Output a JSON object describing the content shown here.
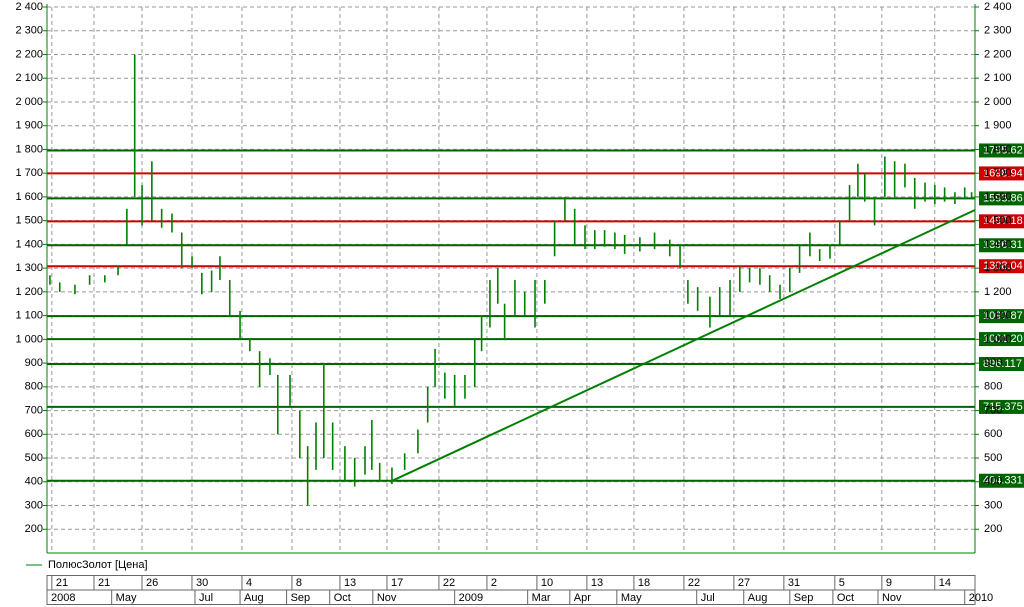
{
  "chart_data": {
    "type": "ohlc",
    "xlim": [
      -0.16,
      18.78
    ],
    "ylim": [
      100,
      2400
    ],
    "grid": true,
    "yticks": [
      {
        "value": 200,
        "label": "200"
      },
      {
        "value": 300,
        "label": "300"
      },
      {
        "value": 400,
        "label": "400"
      },
      {
        "value": 500,
        "label": "500"
      },
      {
        "value": 600,
        "label": "600"
      },
      {
        "value": 700,
        "label": "700"
      },
      {
        "value": 800,
        "label": "800"
      },
      {
        "value": 900,
        "label": "900"
      },
      {
        "value": 1000,
        "label": "1 000"
      },
      {
        "value": 1100,
        "label": "1 100"
      },
      {
        "value": 1200,
        "label": "1 200"
      },
      {
        "value": 1300,
        "label": "1 300"
      },
      {
        "value": 1400,
        "label": "1 400"
      },
      {
        "value": 1500,
        "label": "1 500"
      },
      {
        "value": 1600,
        "label": "1 600"
      },
      {
        "value": 1700,
        "label": "1 700"
      },
      {
        "value": 1800,
        "label": "1 800"
      },
      {
        "value": 1900,
        "label": "1 900"
      },
      {
        "value": 2000,
        "label": "2 000"
      },
      {
        "value": 2100,
        "label": "2 100"
      },
      {
        "value": 2200,
        "label": "2 200"
      },
      {
        "value": 2300,
        "label": "2 300"
      },
      {
        "value": 2400,
        "label": "2 400"
      }
    ],
    "xticks": [
      {
        "value": 0,
        "label": "21"
      },
      {
        "value": 0.86,
        "label": "21"
      },
      {
        "value": 1.84,
        "label": "26"
      },
      {
        "value": 2.86,
        "label": "30"
      },
      {
        "value": 3.88,
        "label": "4"
      },
      {
        "value": 4.9,
        "label": "8"
      },
      {
        "value": 5.88,
        "label": "13"
      },
      {
        "value": 6.84,
        "label": "17"
      },
      {
        "value": 7.9,
        "label": "22"
      },
      {
        "value": 8.88,
        "label": "2"
      },
      {
        "value": 9.9,
        "label": "10"
      },
      {
        "value": 10.92,
        "label": "13"
      },
      {
        "value": 11.88,
        "label": "18"
      },
      {
        "value": 12.9,
        "label": "22"
      },
      {
        "value": 13.92,
        "label": "27"
      },
      {
        "value": 14.94,
        "label": "31"
      },
      {
        "value": 15.98,
        "label": "5"
      },
      {
        "value": 16.94,
        "label": "9"
      },
      {
        "value": 18.02,
        "label": "14"
      }
    ],
    "months": [
      {
        "value": -0.16,
        "label": "2008"
      },
      {
        "value": 1.16,
        "label": "May"
      },
      {
        "value": 2.86,
        "label": "Jul"
      },
      {
        "value": 3.78,
        "label": "Aug"
      },
      {
        "value": 4.73,
        "label": "Sep"
      },
      {
        "value": 5.61,
        "label": "Oct"
      },
      {
        "value": 6.49,
        "label": "Nov"
      },
      {
        "value": 8.16,
        "label": "2009"
      },
      {
        "value": 9.65,
        "label": "Mar"
      },
      {
        "value": 10.51,
        "label": "Apr"
      },
      {
        "value": 11.47,
        "label": "May"
      },
      {
        "value": 13.1,
        "label": "Jul"
      },
      {
        "value": 14.06,
        "label": "Aug"
      },
      {
        "value": 15.0,
        "label": "Sep"
      },
      {
        "value": 15.88,
        "label": "Oct"
      },
      {
        "value": 16.8,
        "label": "Nov"
      },
      {
        "value": 18.57,
        "label": "2010"
      }
    ],
    "levels": [
      {
        "value": 1795.62,
        "label": "1795.62",
        "color": "#006400"
      },
      {
        "value": 1698.94,
        "label": "1698.94",
        "color": "#cc0000"
      },
      {
        "value": 1593.86,
        "label": "1593.86",
        "color": "#006400"
      },
      {
        "value": 1497.18,
        "label": "1497.18",
        "color": "#cc0000"
      },
      {
        "value": 1396.31,
        "label": "1396.31",
        "color": "#006400"
      },
      {
        "value": 1308.04,
        "label": "1308.04",
        "color": "#cc0000"
      },
      {
        "value": 1097.87,
        "label": "1097.87",
        "color": "#006400"
      },
      {
        "value": 1001.2,
        "label": "1001.20",
        "color": "#006400"
      },
      {
        "value": 896.117,
        "label": "896.117",
        "color": "#006400"
      },
      {
        "value": 715.375,
        "label": "715.375",
        "color": "#006400"
      },
      {
        "value": 404.331,
        "label": "404.331",
        "color": "#006400"
      }
    ],
    "trendline": {
      "color": "#008000",
      "x": [
        6.84,
        18.78
      ],
      "values": [
        400,
        1545
      ]
    },
    "series": [
      {
        "name": "ПолюсЗолот [Цена]",
        "color": "#008000",
        "x": [
          -0.1,
          0.1,
          0.41,
          0.71,
          1.02,
          1.29,
          1.47,
          1.63,
          1.78,
          1.98,
          2.18,
          2.39,
          2.59,
          2.8,
          3.0,
          3.2,
          3.37,
          3.57,
          3.78,
          3.98,
          4.18,
          4.39,
          4.55,
          4.8,
          5.0,
          5.16,
          5.33,
          5.49,
          5.67,
          5.92,
          6.12,
          6.33,
          6.47,
          6.63,
          6.88,
          7.14,
          7.41,
          7.61,
          7.76,
          7.96,
          8.16,
          8.37,
          8.57,
          8.71,
          8.88,
          9.04,
          9.18,
          9.39,
          9.59,
          9.8,
          10.0,
          10.2,
          10.41,
          10.61,
          10.82,
          11.02,
          11.22,
          11.43,
          11.63,
          11.94,
          12.24,
          12.55,
          12.76,
          12.92,
          13.12,
          13.37,
          13.57,
          13.78,
          13.98,
          14.18,
          14.39,
          14.59,
          14.8,
          15.0,
          15.2,
          15.41,
          15.61,
          15.82,
          16.02,
          16.22,
          16.39,
          16.53,
          16.73,
          16.94,
          17.14,
          17.35,
          17.55,
          17.76,
          17.96,
          18.16,
          18.37,
          18.57,
          18.71
        ],
        "high": [
          1270,
          1240,
          1230,
          1270,
          1270,
          1310,
          1550,
          2200,
          1650,
          1750,
          1550,
          1530,
          1450,
          1350,
          1280,
          1290,
          1350,
          1250,
          1120,
          1000,
          950,
          920,
          850,
          850,
          700,
          550,
          650,
          900,
          650,
          550,
          500,
          550,
          660,
          480,
          460,
          520,
          620,
          800,
          960,
          860,
          850,
          850,
          1000,
          1100,
          1250,
          1300,
          1150,
          1250,
          1200,
          1250,
          1250,
          1500,
          1600,
          1550,
          1480,
          1460,
          1460,
          1450,
          1440,
          1430,
          1450,
          1420,
          1400,
          1250,
          1220,
          1180,
          1220,
          1250,
          1310,
          1300,
          1300,
          1270,
          1230,
          1300,
          1400,
          1450,
          1380,
          1400,
          1500,
          1650,
          1740,
          1700,
          1600,
          1770,
          1750,
          1740,
          1680,
          1660,
          1650,
          1640,
          1620,
          1640,
          1620
        ],
        "low": [
          1230,
          1200,
          1190,
          1230,
          1240,
          1270,
          1400,
          1600,
          1480,
          1500,
          1470,
          1450,
          1300,
          1300,
          1190,
          1200,
          1250,
          1100,
          1000,
          950,
          800,
          850,
          600,
          720,
          500,
          300,
          450,
          500,
          450,
          400,
          380,
          430,
          450,
          400,
          390,
          450,
          520,
          650,
          800,
          750,
          720,
          750,
          800,
          950,
          1050,
          1150,
          1000,
          1100,
          1100,
          1050,
          1150,
          1350,
          1500,
          1400,
          1380,
          1380,
          1390,
          1380,
          1360,
          1370,
          1380,
          1350,
          1300,
          1150,
          1120,
          1050,
          1100,
          1100,
          1200,
          1240,
          1230,
          1200,
          1170,
          1200,
          1280,
          1350,
          1330,
          1340,
          1400,
          1500,
          1600,
          1580,
          1480,
          1600,
          1600,
          1640,
          1550,
          1580,
          1570,
          1580,
          1570,
          1590,
          1590
        ]
      }
    ]
  }
}
